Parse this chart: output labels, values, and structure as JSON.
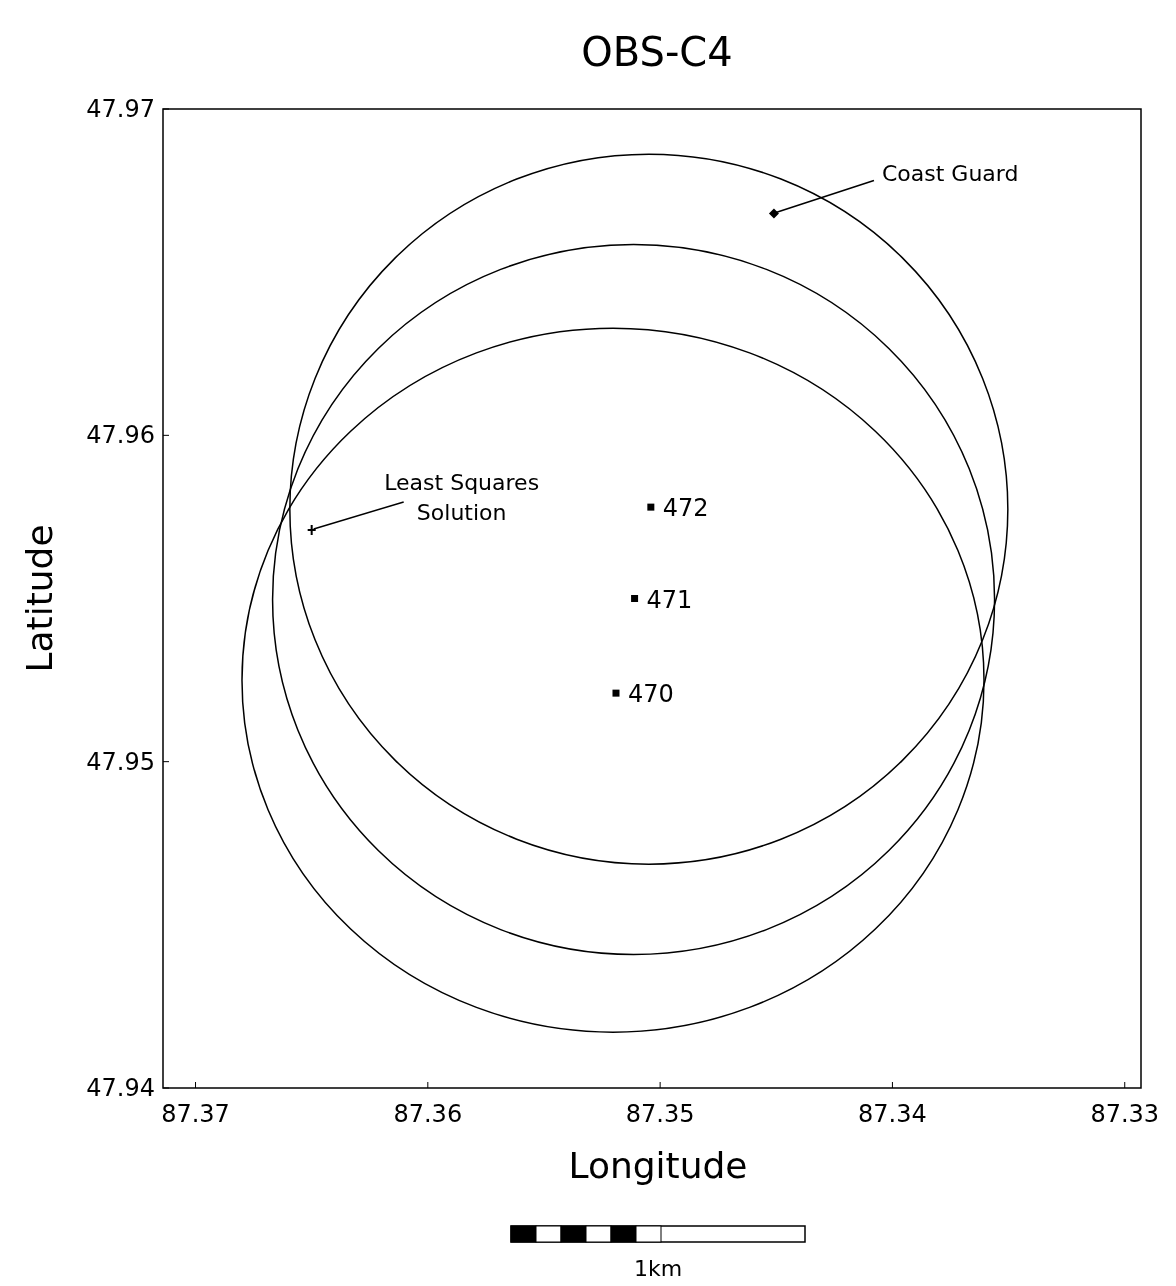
{
  "chart_data": {
    "type": "scatter",
    "title": "OBS-C4",
    "xlabel": "Longitude",
    "ylabel": "Latitude",
    "xlim": [
      87.3714,
      87.3293
    ],
    "ylim": [
      47.94,
      47.97
    ],
    "xticks": [
      87.37,
      87.36,
      87.35,
      87.34,
      87.33
    ],
    "yticks": [
      47.94,
      47.95,
      47.96,
      47.97
    ],
    "series": [
      {
        "name": "472",
        "marker": "square",
        "color": "#000000",
        "x": [
          87.3504
        ],
        "values": [
          47.9578
        ]
      },
      {
        "name": "471",
        "marker": "square",
        "color": "#000000",
        "x": [
          87.3511
        ],
        "values": [
          47.955
        ]
      },
      {
        "name": "470",
        "marker": "square",
        "color": "#000000",
        "x": [
          87.3519
        ],
        "values": [
          47.9521
        ]
      },
      {
        "marker": "diamond",
        "color": "#000000",
        "x": [
          87.3451
        ],
        "values": [
          47.9668
        ]
      },
      {
        "marker": "cross",
        "color": "#000000",
        "x": [
          87.365
        ],
        "values": [
          47.9571
        ]
      }
    ],
    "annotations": [
      {
        "text": "Coast Guard",
        "x": 87.3451,
        "y": 47.9668
      },
      {
        "text": "Least Squares Solution",
        "x": 87.365,
        "y": 47.9571
      },
      "1km"
    ]
  }
}
